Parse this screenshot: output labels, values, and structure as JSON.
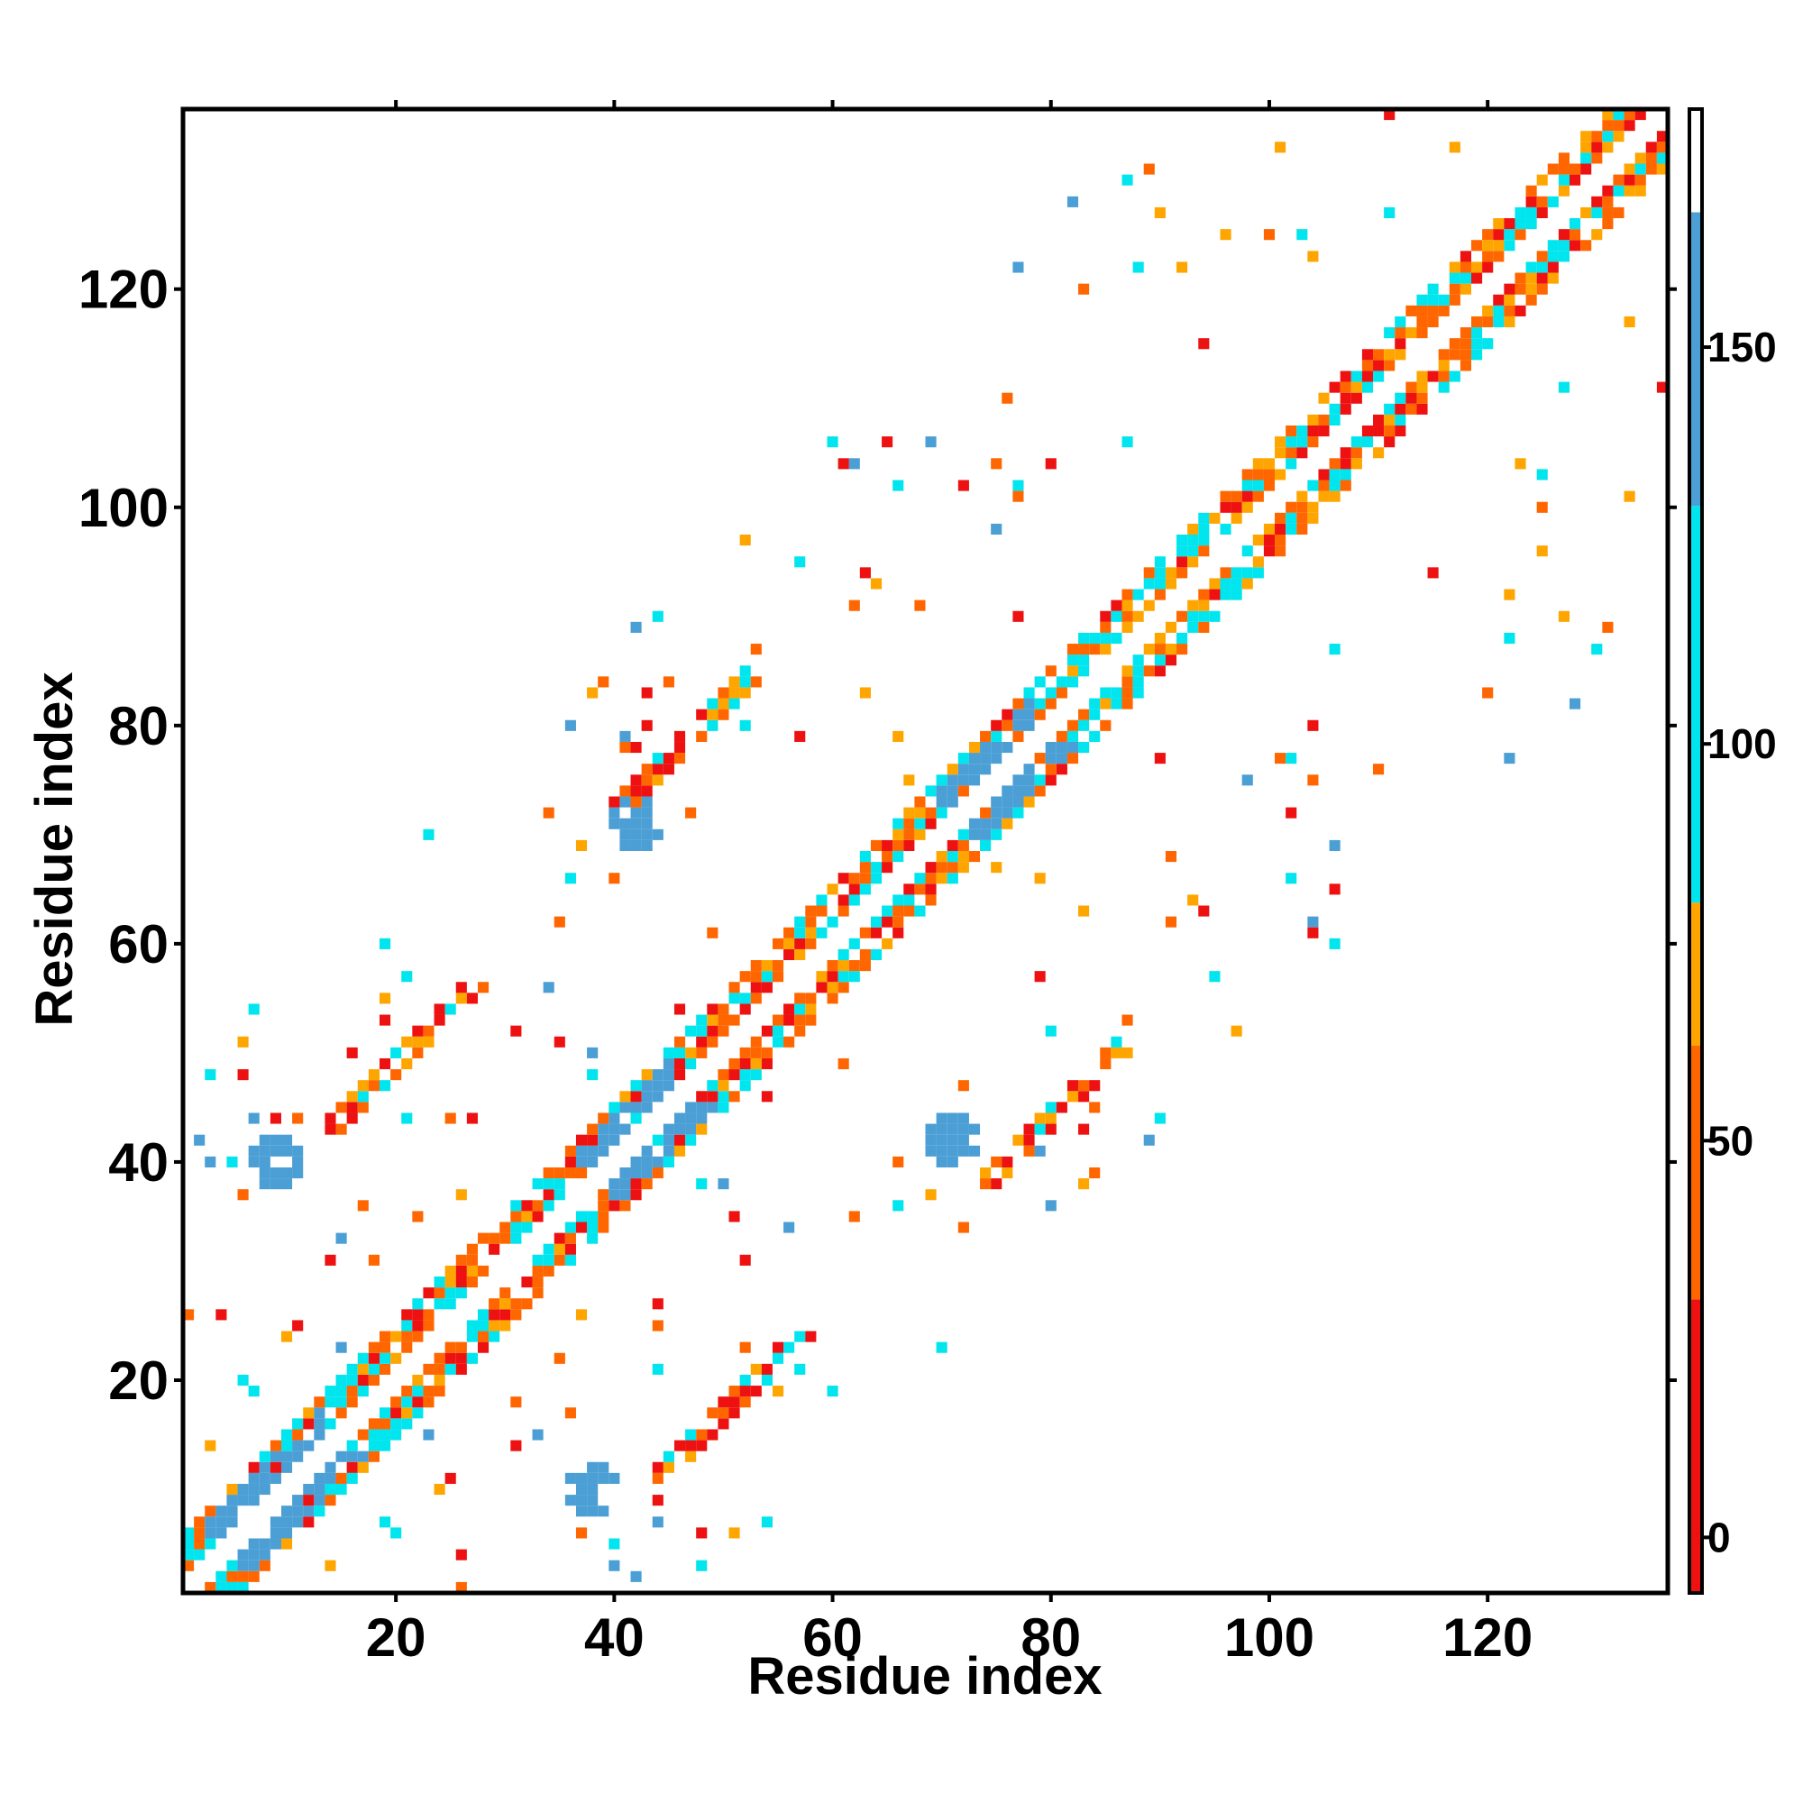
{
  "chart_data": {
    "type": "heatmap",
    "title": "",
    "xlabel": "Residue index",
    "ylabel": "Residue index",
    "xlim": [
      1,
      136
    ],
    "ylim": [
      1,
      136
    ],
    "x_ticks": [
      20,
      40,
      60,
      80,
      100,
      120
    ],
    "y_ticks": [
      20,
      40,
      60,
      80,
      100,
      120
    ],
    "grid": false,
    "symmetric": true,
    "colorbar": {
      "ticks": [
        0,
        50,
        100,
        150
      ],
      "range": [
        -7,
        180
      ],
      "segments": [
        {
          "from": -7,
          "to": 30,
          "color": "#ee1111"
        },
        {
          "from": 30,
          "to": 62,
          "color": "#ff6600"
        },
        {
          "from": 62,
          "to": 80,
          "color": "#ffa500"
        },
        {
          "from": 80,
          "to": 130,
          "color": "#00e5ee"
        },
        {
          "from": 130,
          "to": 167,
          "color": "#4b9fd5"
        },
        {
          "from": 167,
          "to": 180,
          "color": "#ffffff"
        }
      ]
    },
    "value_color_classes": {
      "red": 12,
      "dark_orange": 45,
      "orange": 70,
      "cyan": 105,
      "steel_blue": 150
    },
    "regions": [
      {
        "name": "main diagonal band",
        "residues": [
          1,
          136
        ],
        "values": [
          12,
          45,
          70,
          105
        ]
      },
      {
        "name": "helix 5-11",
        "residues": [
          5,
          11
        ],
        "values": [
          150
        ]
      },
      {
        "name": "helix 39-43",
        "residues": [
          39,
          43
        ],
        "values": [
          150
        ]
      },
      {
        "name": "helix 72-76",
        "residues": [
          72,
          76
        ],
        "values": [
          150
        ]
      },
      {
        "name": "contact cluster",
        "residue_pair": [
          9,
          40
        ],
        "values": [
          150
        ]
      },
      {
        "name": "contact cluster",
        "residue_pair": [
          38,
          10
        ],
        "values": [
          150
        ]
      },
      {
        "name": "contact cluster",
        "residue_pair": [
          42,
          71
        ],
        "values": [
          150
        ]
      },
      {
        "name": "contact cluster",
        "residue_pair": [
          71,
          42
        ],
        "values": [
          150
        ]
      },
      {
        "name": "antiparallel strand",
        "residue_pair_start": [
          13,
          44
        ],
        "residue_pair_end": [
          26,
          57
        ],
        "values": [
          12,
          45,
          105
        ]
      },
      {
        "name": "antiparallel strand",
        "residue_pair_start": [
          44,
          13
        ],
        "residue_pair_end": [
          57,
          26
        ],
        "values": [
          12,
          45,
          105
        ]
      },
      {
        "name": "antiparallel strand",
        "residue_pair_start": [
          39,
          73
        ],
        "residue_pair_end": [
          52,
          86
        ],
        "values": [
          12,
          45,
          105
        ]
      },
      {
        "name": "antiparallel strand",
        "residue_pair_start": [
          73,
          39
        ],
        "residue_pair_end": [
          86,
          52
        ],
        "values": [
          12,
          45,
          105
        ]
      }
    ]
  }
}
